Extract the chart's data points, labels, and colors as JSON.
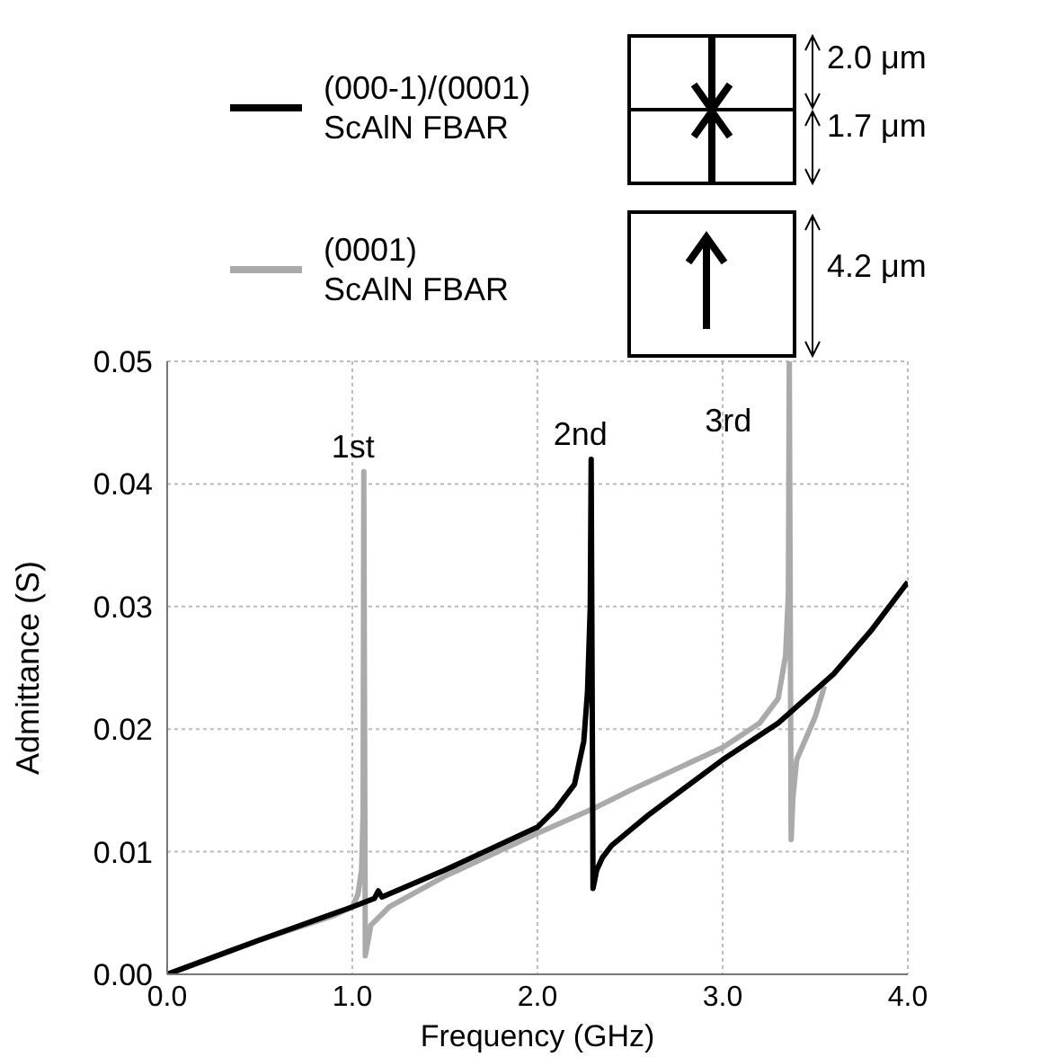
{
  "chart_data": {
    "type": "line",
    "xlabel": "Frequency (GHz)",
    "ylabel": "Admittance (S)",
    "xlim": [
      0,
      4
    ],
    "xticks": [
      {
        "value": 0,
        "label": "0.0"
      },
      {
        "value": 1,
        "label": "1.0"
      },
      {
        "value": 2,
        "label": "2.0"
      },
      {
        "value": 3,
        "label": "3.0"
      },
      {
        "value": 4,
        "label": "4.0"
      }
    ],
    "ylim": [
      0,
      0.05
    ],
    "yticks": [
      {
        "value": 0,
        "label": "0.00"
      },
      0.01,
      0.02,
      0.03,
      0.04,
      0.05
    ],
    "grid": true,
    "legend": "top",
    "marker": "none",
    "line_style": "solid",
    "series": [
      {
        "name": "(000-1)/(0001) ScAlN FBAR",
        "color": "#000000",
        "x": [
          0,
          0.5,
          1.0,
          1.12,
          1.14,
          1.16,
          1.5,
          2.0,
          2.1,
          2.2,
          2.25,
          2.27,
          2.285,
          2.29,
          2.3,
          2.32,
          2.35,
          2.4,
          2.6,
          3.0,
          3.3,
          3.6,
          3.8,
          4.0
        ],
        "values": [
          0,
          0.0028,
          0.0055,
          0.0062,
          0.0068,
          0.0063,
          0.0085,
          0.012,
          0.0135,
          0.0155,
          0.019,
          0.023,
          0.03,
          0.042,
          0.007,
          0.0085,
          0.0095,
          0.0105,
          0.013,
          0.0175,
          0.0205,
          0.0245,
          0.028,
          0.032
        ]
      },
      {
        "name": "(0001) ScAlN FBAR",
        "color": "#aaaaaa",
        "x": [
          0,
          0.5,
          0.9,
          1.0,
          1.03,
          1.05,
          1.058,
          1.062,
          1.07,
          1.1,
          1.2,
          1.5,
          2.0,
          2.3,
          2.5,
          3.0,
          3.2,
          3.3,
          3.34,
          3.355,
          3.36,
          3.37,
          3.38,
          3.4,
          3.5,
          3.55
        ],
        "values": [
          0,
          0.0028,
          0.0048,
          0.0055,
          0.0065,
          0.0085,
          0.013,
          0.041,
          0.0015,
          0.004,
          0.0055,
          0.008,
          0.0115,
          0.0135,
          0.015,
          0.0185,
          0.0205,
          0.0225,
          0.026,
          0.031,
          0.05,
          0.011,
          0.0145,
          0.0175,
          0.021,
          0.0235
        ]
      }
    ],
    "annotations": [
      {
        "text": "1st",
        "x": 1.062,
        "y": 0.041
      },
      {
        "text": "2nd",
        "x": 2.29,
        "y": 0.042
      },
      {
        "text": "3rd",
        "x": 3.36,
        "y": 0.05
      },
      "2.0 μm",
      "1.7 μm",
      "4.2 μm"
    ]
  }
}
